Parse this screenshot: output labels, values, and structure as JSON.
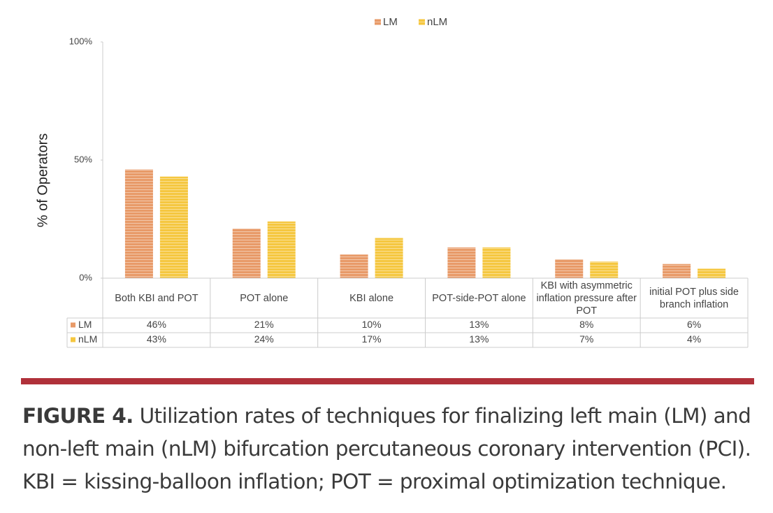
{
  "chart_data": {
    "type": "bar",
    "y_label": "% of Operators",
    "categories": [
      "Both KBI and POT",
      "POT alone",
      "KBI alone",
      "POT-side-POT alone",
      "KBI with asymmetric inflation pressure after POT",
      "initial POT plus side branch inflation"
    ],
    "series": [
      {
        "name": "LM",
        "color": "#e89a68",
        "values": [
          46,
          21,
          10,
          13,
          8,
          6
        ],
        "value_labels": [
          "46%",
          "21%",
          "10%",
          "13%",
          "8%",
          "6%"
        ]
      },
      {
        "name": "nLM",
        "color": "#f5c740",
        "values": [
          43,
          24,
          17,
          13,
          7,
          4
        ],
        "value_labels": [
          "43%",
          "24%",
          "17%",
          "13%",
          "7%",
          "4%"
        ]
      }
    ],
    "ylim": [
      0,
      100
    ],
    "yticks": [
      {
        "value": 0,
        "label": "0%"
      },
      {
        "value": 50,
        "label": "50%"
      },
      {
        "value": 100,
        "label": "100%"
      }
    ],
    "legend": "top"
  },
  "caption": {
    "label": "FIGURE 4.",
    "text": "Utilization rates of techniques for finalizing left main (LM) and non-left main (nLM) bifurcation percutaneous coronary intervention (PCI). KBI = kissing-balloon inflation; POT = proximal optimization technique."
  }
}
